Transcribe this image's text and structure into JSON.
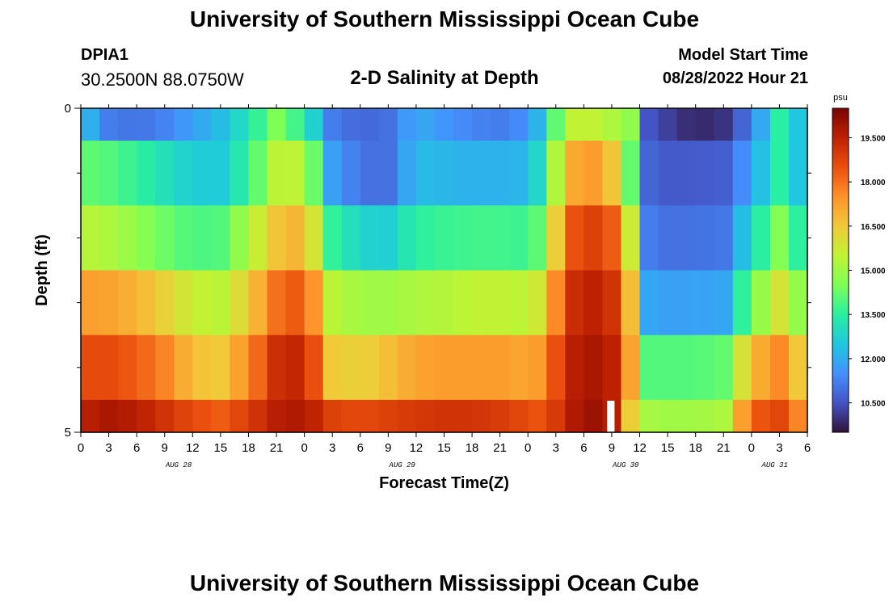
{
  "header": {
    "title": "University of Southern Mississippi Ocean Cube",
    "station_id": "DPIA1",
    "coordinates": "30.2500N  88.0750W",
    "plot_title": "2-D Salinity at Depth",
    "model_start_label": "Model Start Time",
    "model_start_value": "08/28/2022 Hour 21"
  },
  "footer": {
    "title": "University of Southern Mississippi Ocean Cube"
  },
  "colors": {
    "colormap": [
      "#30123b",
      "#4454c4",
      "#4490fe",
      "#1fc8de",
      "#29efa2",
      "#7dff56",
      "#c1f334",
      "#f1ca3a",
      "#fe922a",
      "#ea4f0d",
      "#be2102",
      "#7a0403"
    ]
  },
  "chart_data": {
    "type": "heatmap",
    "title": "2-D Salinity at Depth",
    "xlabel": "Forecast Time(Z)",
    "ylabel": "Depth (ft)",
    "x_tick_labels": [
      "0",
      "3",
      "6",
      "9",
      "12",
      "15",
      "18",
      "21",
      "0",
      "3",
      "6",
      "9",
      "12",
      "15",
      "18",
      "21",
      "0",
      "3",
      "6",
      "9",
      "12",
      "15",
      "18",
      "21",
      "0",
      "3",
      "6"
    ],
    "x_range_hours": [
      0,
      78
    ],
    "day_labels": [
      {
        "label": "AUG 28",
        "hour": 10.5
      },
      {
        "label": "AUG 29",
        "hour": 34.5
      },
      {
        "label": "AUG 30",
        "hour": 58.5
      },
      {
        "label": "AUG 31",
        "hour": 74.5
      }
    ],
    "y_tick_labels": [
      "0",
      "5"
    ],
    "y_range": [
      0,
      5
    ],
    "y_minor_ticks": [
      1,
      2,
      3,
      4
    ],
    "depth_bands": [
      0,
      1,
      2,
      3,
      4,
      5
    ],
    "colorbar": {
      "unit": "psu",
      "min": 9.5,
      "max": 20.5,
      "tick_labels": [
        "19.500",
        "18.000",
        "16.500",
        "15.000",
        "13.500",
        "12.000",
        "10.500"
      ],
      "tick_values": [
        19.5,
        18.0,
        16.5,
        15.0,
        13.5,
        12.0,
        10.5
      ]
    },
    "missing_segment": {
      "depth_index": 5,
      "hour_start": 56.5,
      "hour_end": 57.3
    },
    "keyframe_hours": [
      0,
      3,
      6,
      9,
      12,
      15,
      18,
      21,
      24,
      27,
      30,
      33,
      36,
      39,
      42,
      45,
      48,
      50,
      52,
      55,
      57,
      59,
      60,
      61,
      63,
      66,
      69,
      72,
      75,
      78
    ],
    "salinity_keyframes": [
      [
        12.5,
        11.2,
        11.0,
        11.3,
        11.8,
        12.3,
        13.2,
        14.5,
        13.5,
        11.2,
        10.8,
        11.0,
        12.0,
        11.6,
        11.3,
        11.2,
        11.5,
        12.8,
        15.5,
        15.5,
        15.2,
        14.8,
        11.2,
        10.5,
        10.2,
        9.8,
        10.0,
        11.2,
        13.5,
        12.0
      ],
      [
        14.2,
        14.0,
        13.6,
        13.1,
        12.6,
        12.6,
        13.6,
        15.4,
        15.5,
        11.8,
        11.0,
        11.0,
        12.3,
        12.2,
        12.1,
        12.1,
        12.2,
        13.5,
        17.0,
        17.3,
        16.6,
        14.2,
        11.2,
        10.8,
        10.6,
        10.6,
        10.7,
        11.8,
        13.5,
        12.0
      ],
      [
        15.4,
        15.2,
        14.8,
        14.3,
        13.9,
        14.0,
        15.2,
        16.6,
        17.0,
        13.6,
        12.8,
        12.7,
        13.5,
        13.7,
        13.8,
        13.8,
        13.7,
        14.5,
        18.3,
        18.8,
        18.3,
        15.7,
        11.6,
        11.2,
        11.0,
        11.0,
        11.1,
        12.9,
        14.6,
        13.0
      ],
      [
        17.3,
        17.2,
        16.9,
        16.3,
        15.6,
        15.4,
        16.4,
        18.0,
        18.5,
        15.4,
        15.0,
        15.0,
        15.2,
        15.3,
        15.5,
        15.5,
        15.4,
        16.1,
        19.1,
        19.5,
        19.1,
        16.7,
        12.2,
        11.9,
        11.8,
        11.8,
        11.9,
        14.4,
        15.9,
        14.3
      ],
      [
        18.6,
        18.6,
        18.3,
        17.7,
        16.7,
        16.5,
        17.6,
        19.2,
        19.5,
        16.5,
        16.3,
        16.7,
        17.2,
        17.3,
        17.3,
        17.3,
        17.1,
        17.5,
        19.5,
        19.8,
        19.5,
        17.2,
        14.3,
        14.0,
        14.0,
        14.0,
        14.2,
        16.8,
        17.6,
        16.0
      ],
      [
        19.5,
        19.8,
        19.6,
        19.1,
        18.6,
        18.3,
        18.9,
        19.6,
        19.8,
        18.8,
        18.6,
        18.8,
        19.0,
        19.1,
        19.1,
        18.9,
        18.6,
        18.3,
        19.6,
        20.0,
        19.6,
        16.4,
        15.3,
        15.1,
        15.0,
        15.0,
        15.2,
        18.3,
        18.7,
        17.2
      ]
    ]
  }
}
